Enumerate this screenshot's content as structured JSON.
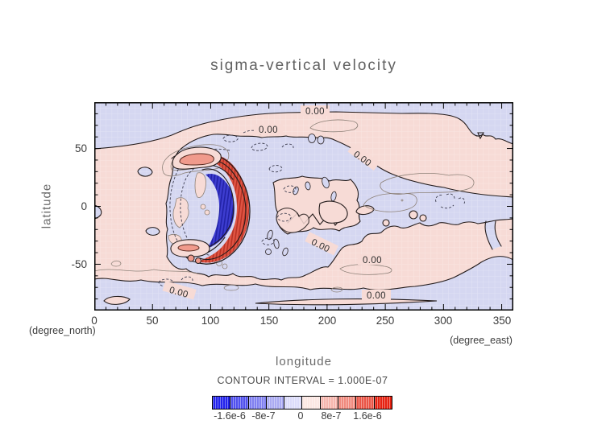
{
  "title": "sigma-vertical velocity",
  "axes": {
    "x": {
      "label": "longitude",
      "unit_left": "(degree_north)",
      "unit_right": "(degree_east)",
      "ticks": [
        "0",
        "50",
        "100",
        "150",
        "200",
        "250",
        "300",
        "350"
      ]
    },
    "y": {
      "label": "latitude",
      "ticks": [
        "50",
        "0",
        "-50"
      ]
    }
  },
  "legend": {
    "text": "CONTOUR INTERVAL = 1.000E-07",
    "colorbar": {
      "labels": [
        "-1.6e-6",
        "-8e-7",
        "0",
        "8e-7",
        "1.6e-6"
      ],
      "colors": [
        "#2222ec",
        "#5050ee",
        "#8080f0",
        "#aaaaf2",
        "#dcdcfa",
        "#fbe7e3",
        "#f6b6ae",
        "#f08a7e",
        "#ea5546",
        "#e62110"
      ]
    }
  },
  "map": {
    "contour_labels": [
      "0.00",
      "0.00",
      "0.00",
      "0.00",
      "0.00",
      "0.00",
      "0.00"
    ]
  },
  "colors": {
    "pink": "#f7dbd6",
    "blue": "#d5d7f1",
    "capred": "#f09a8c",
    "frame": "#000000"
  },
  "chart_data": {
    "type": "contour",
    "title": "sigma-vertical velocity",
    "xlabel": "longitude",
    "ylabel": "latitude",
    "x_unit": "degree_east",
    "y_unit": "degree_north",
    "xlim": [
      0,
      360
    ],
    "ylim": [
      -90,
      90
    ],
    "x_ticks": [
      0,
      50,
      100,
      150,
      200,
      250,
      300,
      350
    ],
    "y_ticks": [
      -50,
      0,
      50
    ],
    "minor_tick_step_deg": 10,
    "contour_interval": 1e-07,
    "contour_interval_label": "CONTOUR INTERVAL = 1.000E-07",
    "zero_contour_label": "0.00",
    "negative_contour_style": "dashed",
    "positive_contour_style": "solid",
    "colorbar": {
      "range": [
        -2e-06,
        2e-06
      ],
      "segment_step": 4e-07,
      "tick_values": [
        -1.6e-06,
        -8e-07,
        0,
        8e-07,
        1.6e-06
      ],
      "tick_labels": [
        "-1.6e-6",
        "-8e-7",
        "0",
        "8e-7",
        "1.6e-6"
      ],
      "colors": [
        "#2222ec",
        "#5050ee",
        "#8080f0",
        "#aaaaf2",
        "#dcdcfa",
        "#fbe7e3",
        "#f6b6ae",
        "#f08a7e",
        "#ea5546",
        "#e62110"
      ]
    },
    "features": [
      {
        "name": "strong negative crescent (dark blue, < -1.6e-6)",
        "lon_range": [
          95,
          125
        ],
        "lat_range": [
          -30,
          30
        ]
      },
      {
        "name": "strong positive arc just east of crescent (red, > 1.6e-6)",
        "lon_range": [
          115,
          135
        ],
        "lat_range": [
          -32,
          28
        ]
      },
      {
        "name": "positive caps north and south of crescent (~8e-7)",
        "points": [
          {
            "lon": 82,
            "lat": 42
          },
          {
            "lon": 80,
            "lat": -35
          }
        ]
      },
      {
        "name": "weak positive band, northern mid-latitudes (~1e-7)",
        "lat_range": [
          10,
          48
        ],
        "lon_range": [
          0,
          360
        ]
      },
      {
        "name": "weak negative band, high northern latitudes (~-1e-7)",
        "lat_range": [
          52,
          90
        ],
        "lon_range": [
          0,
          360
        ]
      },
      {
        "name": "weak negative equatorial band east of the crescent (~-1e-7)",
        "lat_range": [
          -15,
          12
        ],
        "lon_range": [
          155,
          360
        ]
      },
      {
        "name": "weak positive band, southern mid-latitudes (~1e-7)",
        "lat_range": [
          -48,
          -25
        ],
        "lon_range": [
          0,
          360
        ]
      },
      {
        "name": "weak negative band, southern high latitudes (~-1e-7)",
        "lat_range": [
          -90,
          -58
        ],
        "lon_range": [
          0,
          360
        ]
      }
    ]
  }
}
